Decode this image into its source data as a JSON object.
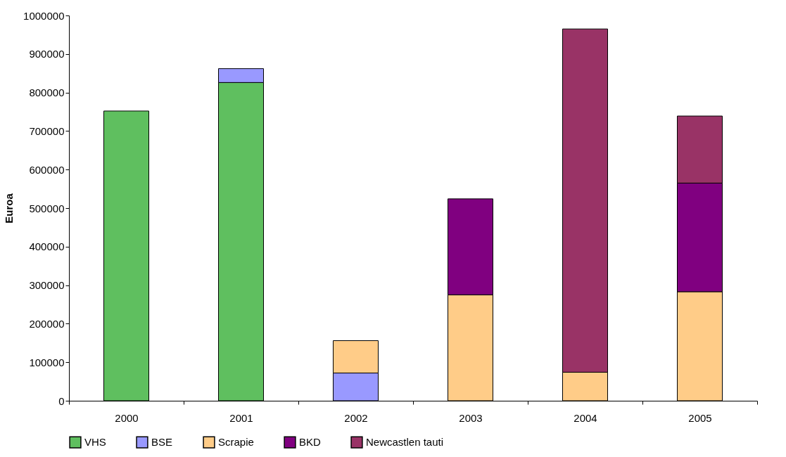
{
  "chart_data": {
    "type": "bar",
    "stacked": true,
    "ylabel": "Euroa",
    "categories": [
      "2000",
      "2001",
      "2002",
      "2003",
      "2004",
      "2005"
    ],
    "series": [
      {
        "name": "VHS",
        "color": "#5fbf5f",
        "values": [
          752000,
          826000,
          null,
          null,
          null,
          null
        ]
      },
      {
        "name": "BSE",
        "color": "#9999ff",
        "values": [
          null,
          36000,
          72000,
          null,
          null,
          null
        ]
      },
      {
        "name": "Scrapie",
        "color": "#ffcc88",
        "values": [
          null,
          null,
          84000,
          275000,
          74000,
          283000
        ]
      },
      {
        "name": "BKD",
        "color": "#800080",
        "values": [
          null,
          null,
          null,
          249000,
          null,
          282000
        ]
      },
      {
        "name": "Newcastlen tauti",
        "color": "#993366",
        "values": [
          null,
          null,
          null,
          null,
          891000,
          174000
        ]
      }
    ],
    "ylim": [
      0,
      1000000
    ],
    "yticks": [
      0,
      100000,
      200000,
      300000,
      400000,
      500000,
      600000,
      700000,
      800000,
      900000,
      1000000
    ],
    "grid": false,
    "legend": "bottom"
  }
}
